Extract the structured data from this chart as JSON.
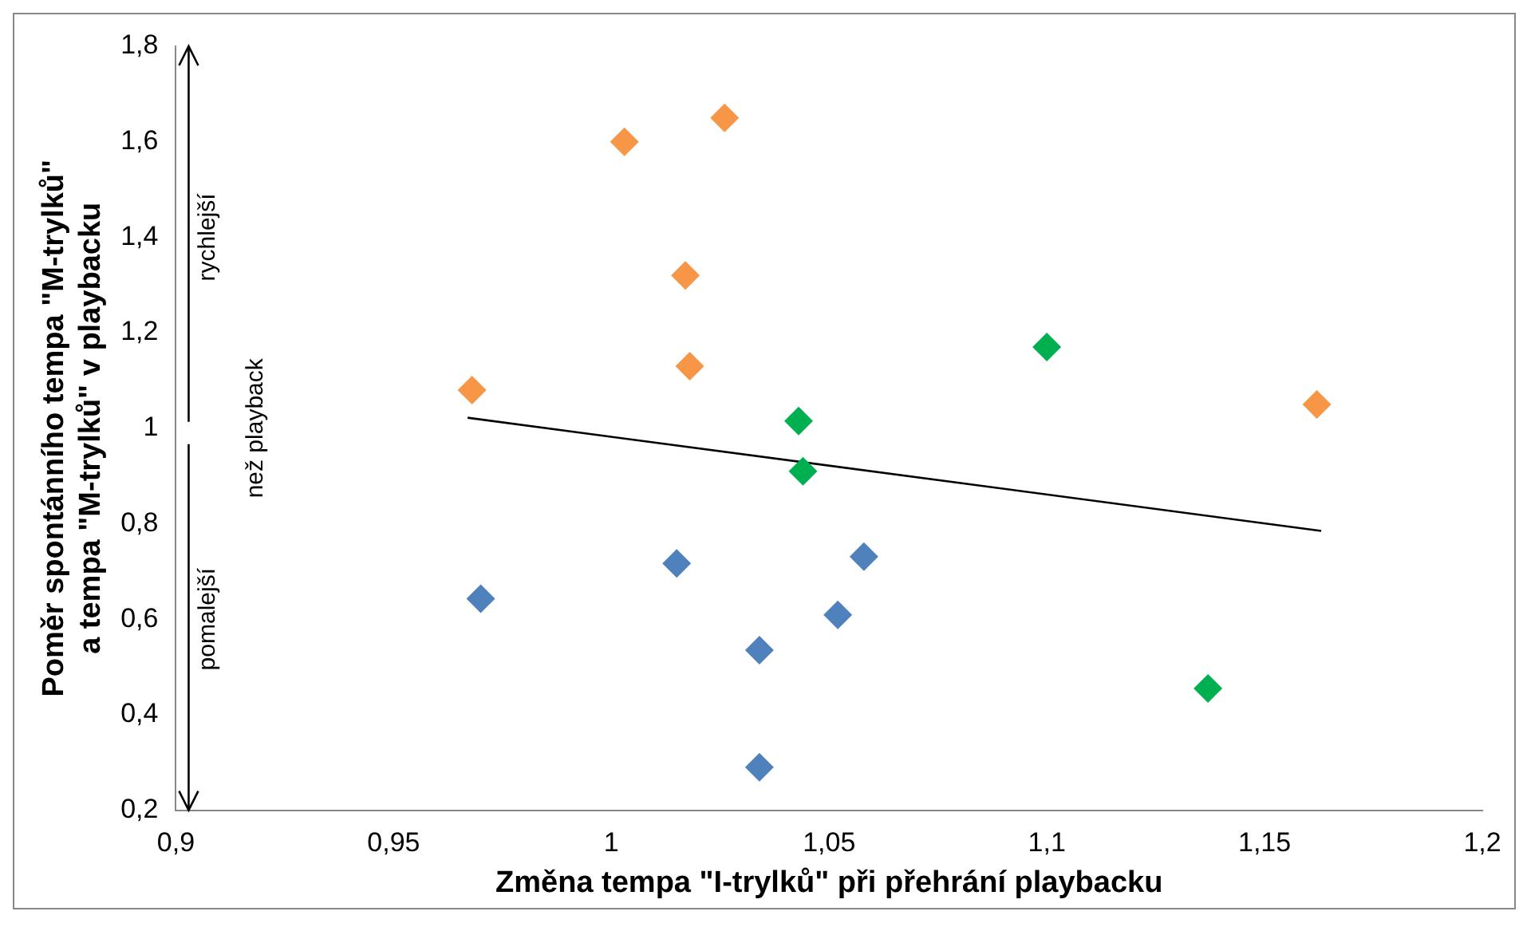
{
  "chart_data": {
    "type": "scatter",
    "xlabel": "Změna tempa \"I-trylků\" při přehrání playbacku",
    "ylabel": "Poměr spontánního tempa \"M-trylků\"\na tempa \"M-trylků\" v playbacku",
    "xlim": [
      0.9,
      1.2
    ],
    "xticks": [
      {
        "value": 0.9,
        "label": "0,9"
      },
      {
        "value": 0.95,
        "label": "0,95"
      },
      {
        "value": 1,
        "label": "1"
      },
      {
        "value": 1.05,
        "label": "1,05"
      },
      {
        "value": 1.1,
        "label": "1,1"
      },
      {
        "value": 1.15,
        "label": "1,15"
      },
      {
        "value": 1.2,
        "label": "1,2"
      }
    ],
    "ylim": [
      0.2,
      1.8
    ],
    "yticks": [
      {
        "value": 0.2,
        "label": "0,2"
      },
      {
        "value": 0.4,
        "label": "0,4"
      },
      {
        "value": 0.6,
        "label": "0,6"
      },
      {
        "value": 0.8,
        "label": "0,8"
      },
      {
        "value": 1,
        "label": "1"
      },
      {
        "value": 1.2,
        "label": "1,2"
      },
      {
        "value": 1.4,
        "label": "1,4"
      },
      {
        "value": 1.6,
        "label": "1,6"
      },
      {
        "value": 1.8,
        "label": "1,8"
      }
    ],
    "grid": false,
    "legend": false,
    "marker": "diamond",
    "series": [
      {
        "color": "#f79646",
        "x": [
          1.003,
          1.026,
          1.017,
          1.018,
          0.968,
          1.162
        ],
        "values": [
          1.6,
          1.65,
          1.32,
          1.13,
          1.08,
          1.05
        ]
      },
      {
        "color": "#00b050",
        "x": [
          1.1,
          1.043,
          1.044,
          1.137
        ],
        "values": [
          1.17,
          1.015,
          0.91,
          0.455
        ]
      },
      {
        "color": "#4f81bd",
        "x": [
          0.97,
          1.015,
          1.034,
          1.058,
          1.052,
          1.034
        ],
        "values": [
          0.643,
          0.717,
          0.535,
          0.731,
          0.609,
          0.29
        ]
      },
      {
        "type": "line",
        "color": "#000000",
        "marker": "none",
        "x": [
          0.967,
          1.163
        ],
        "values": [
          1.022,
          0.785
        ]
      }
    ],
    "annotations": [
      "rychlejší",
      "než playback",
      "pomalejší"
    ]
  }
}
